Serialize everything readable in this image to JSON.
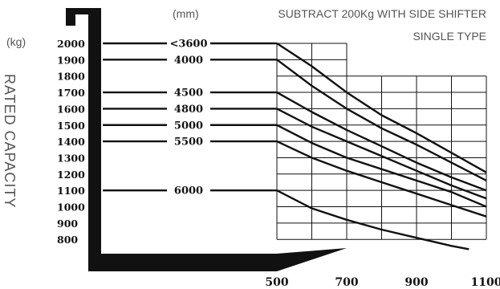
{
  "chart_data": {
    "type": "line",
    "title": "",
    "notes": [
      "SUBTRACT 200Kg WITH SIDE SHIFTER",
      "SINGLE TYPE"
    ],
    "unit_x": "(mm)",
    "unit_y": "(kg)",
    "ylabel": "RATED CAPACITY",
    "xlabel": "",
    "x_ticks": [
      "500",
      "700",
      "900",
      "1100"
    ],
    "y_ticks": [
      "2000",
      "1900",
      "1800",
      "1700",
      "1600",
      "1500",
      "1400",
      "1300",
      "1200",
      "1100",
      "1000",
      "900",
      "800"
    ],
    "xlim": [
      500,
      1100
    ],
    "ylim": [
      800,
      2000
    ],
    "grid": true,
    "series": [
      {
        "name": "<3600",
        "level": 2000,
        "points": [
          [
            500,
            2000
          ],
          [
            600,
            1860
          ],
          [
            700,
            1700
          ],
          [
            800,
            1560
          ],
          [
            900,
            1450
          ],
          [
            1000,
            1330
          ],
          [
            1100,
            1210
          ]
        ]
      },
      {
        "name": "4000",
        "level": 1900,
        "points": [
          [
            500,
            1900
          ],
          [
            600,
            1740
          ],
          [
            700,
            1600
          ],
          [
            800,
            1480
          ],
          [
            900,
            1380
          ],
          [
            1000,
            1270
          ],
          [
            1100,
            1160
          ]
        ]
      },
      {
        "name": "4500",
        "level": 1700,
        "points": [
          [
            500,
            1700
          ],
          [
            600,
            1580
          ],
          [
            700,
            1470
          ],
          [
            800,
            1370
          ],
          [
            900,
            1270
          ],
          [
            1000,
            1180
          ],
          [
            1100,
            1100
          ]
        ]
      },
      {
        "name": "4800",
        "level": 1600,
        "points": [
          [
            500,
            1600
          ],
          [
            600,
            1490
          ],
          [
            700,
            1400
          ],
          [
            800,
            1310
          ],
          [
            900,
            1220
          ],
          [
            1000,
            1130
          ],
          [
            1100,
            1050
          ]
        ]
      },
      {
        "name": "5000",
        "level": 1500,
        "points": [
          [
            500,
            1500
          ],
          [
            600,
            1390
          ],
          [
            700,
            1300
          ],
          [
            800,
            1230
          ],
          [
            900,
            1160
          ],
          [
            1000,
            1090
          ],
          [
            1100,
            1000
          ]
        ]
      },
      {
        "name": "5500",
        "level": 1400,
        "points": [
          [
            500,
            1400
          ],
          [
            600,
            1300
          ],
          [
            700,
            1220
          ],
          [
            800,
            1150
          ],
          [
            900,
            1080
          ],
          [
            1000,
            1010
          ],
          [
            1100,
            940
          ]
        ]
      },
      {
        "name": "6000",
        "level": 1100,
        "points": [
          [
            500,
            1100
          ],
          [
            600,
            990
          ],
          [
            700,
            920
          ],
          [
            800,
            860
          ],
          [
            900,
            810
          ],
          [
            1000,
            760
          ],
          [
            1050,
            740
          ]
        ]
      }
    ]
  }
}
